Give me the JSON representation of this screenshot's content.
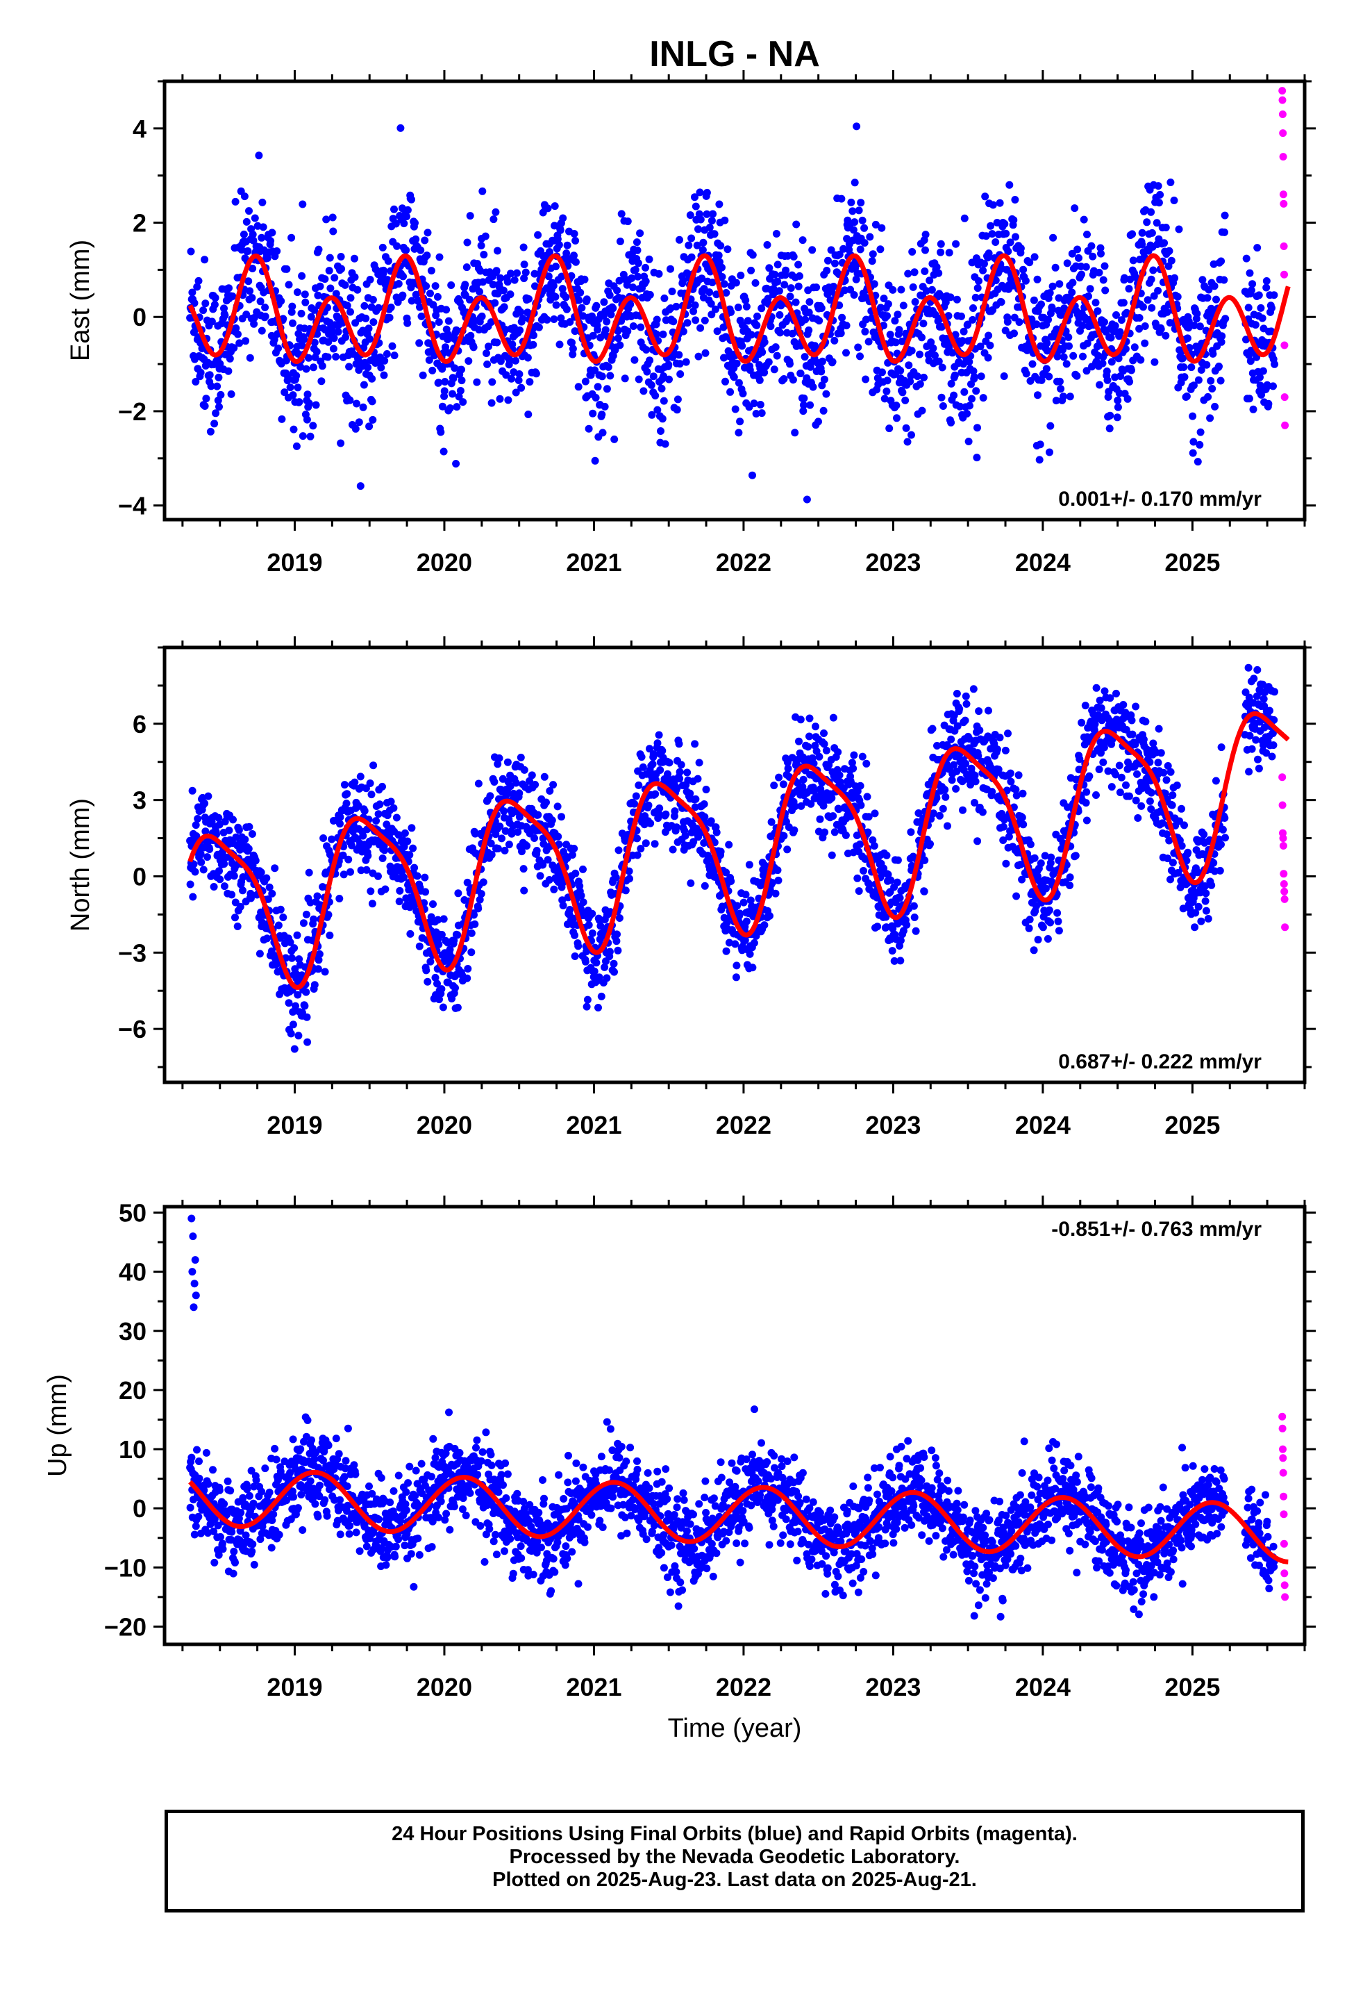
{
  "title": "INLG - NA",
  "x_axis_label": "Time (year)",
  "caption": {
    "line1": "24 Hour Positions Using Final Orbits (blue) and Rapid Orbits (magenta).",
    "line2": "Processed by the Nevada Geodetic Laboratory.",
    "line3": "Plotted on 2025-Aug-23. Last data on 2025-Aug-21."
  },
  "colors": {
    "final": "#0000ff",
    "rapid": "#ff00ff",
    "fit": "#ff0000",
    "axes": "#000000"
  },
  "chart_data": [
    {
      "type": "scatter",
      "ylabel": "East (mm)",
      "rate": "0.001+/- 0.170 mm/yr",
      "xlim": [
        2018.13,
        2025.75
      ],
      "ylim": [
        -4.3,
        5.0
      ],
      "xticks": [
        2019,
        2020,
        2021,
        2022,
        2023,
        2024,
        2025
      ],
      "yticks": [
        -4,
        -2,
        0,
        2,
        4
      ],
      "final_range": [
        2018.3,
        2025.55
      ],
      "rapid_range": [
        2025.58,
        2025.64
      ],
      "fit": {
        "offset": 0.0,
        "trend": 0.001,
        "t0": 2018.3,
        "annual_amp": 0.45,
        "annual_phase": -1.05,
        "semi_amp": 0.85,
        "semi_phase": 2.3,
        "noise": 0.85
      },
      "rapid_values": [
        4.8,
        4.6,
        4.3,
        3.9,
        3.4,
        2.6,
        2.4,
        1.5,
        0.9,
        -0.6,
        -1.7,
        -2.3
      ]
    },
    {
      "type": "scatter",
      "ylabel": "North (mm)",
      "rate": "0.687+/- 0.222 mm/yr",
      "xlim": [
        2018.13,
        2025.75
      ],
      "ylim": [
        -8.1,
        9.0
      ],
      "xticks": [
        2019,
        2020,
        2021,
        2022,
        2023,
        2024,
        2025
      ],
      "yticks": [
        -6,
        -3,
        0,
        3,
        6
      ],
      "final_range": [
        2018.3,
        2025.55
      ],
      "rapid_range": [
        2025.58,
        2025.64
      ],
      "fit": {
        "offset": -1.2,
        "trend": 0.687,
        "t0": 2018.3,
        "annual_amp": 3.0,
        "annual_phase": 0.35,
        "semi_amp": 0.75,
        "semi_phase": 1.6,
        "noise": 1.0
      },
      "rapid_values": [
        3.9,
        2.8,
        1.7,
        1.5,
        1.2,
        0.1,
        -0.3,
        -0.6,
        -0.9,
        -2.0
      ]
    },
    {
      "type": "scatter",
      "ylabel": "Up (mm)",
      "rate": "-0.851+/- 0.763 mm/yr",
      "xlim": [
        2018.13,
        2025.75
      ],
      "ylim": [
        -23.0,
        51.0
      ],
      "xticks": [
        2019,
        2020,
        2021,
        2022,
        2023,
        2024,
        2025
      ],
      "yticks": [
        -20,
        -10,
        0,
        10,
        20,
        30,
        40,
        50
      ],
      "final_range": [
        2018.3,
        2025.55
      ],
      "rapid_range": [
        2025.58,
        2025.64
      ],
      "fit": {
        "offset": 2.0,
        "trend": -0.851,
        "t0": 2018.3,
        "annual_amp": 4.8,
        "annual_phase": 2.6,
        "semi_amp": 0.0,
        "semi_phase": 0.0,
        "noise": 3.8
      },
      "outliers": [
        [
          2018.31,
          49
        ],
        [
          2018.32,
          46
        ],
        [
          2018.315,
          40
        ],
        [
          2018.33,
          38
        ],
        [
          2018.34,
          36
        ],
        [
          2018.325,
          34
        ],
        [
          2018.335,
          42
        ]
      ],
      "rapid_values": [
        15.5,
        13.5,
        10.0,
        8.5,
        6.0,
        2.0,
        -1.0,
        -6.0,
        -11.0,
        -13.0,
        -15.0
      ]
    }
  ]
}
